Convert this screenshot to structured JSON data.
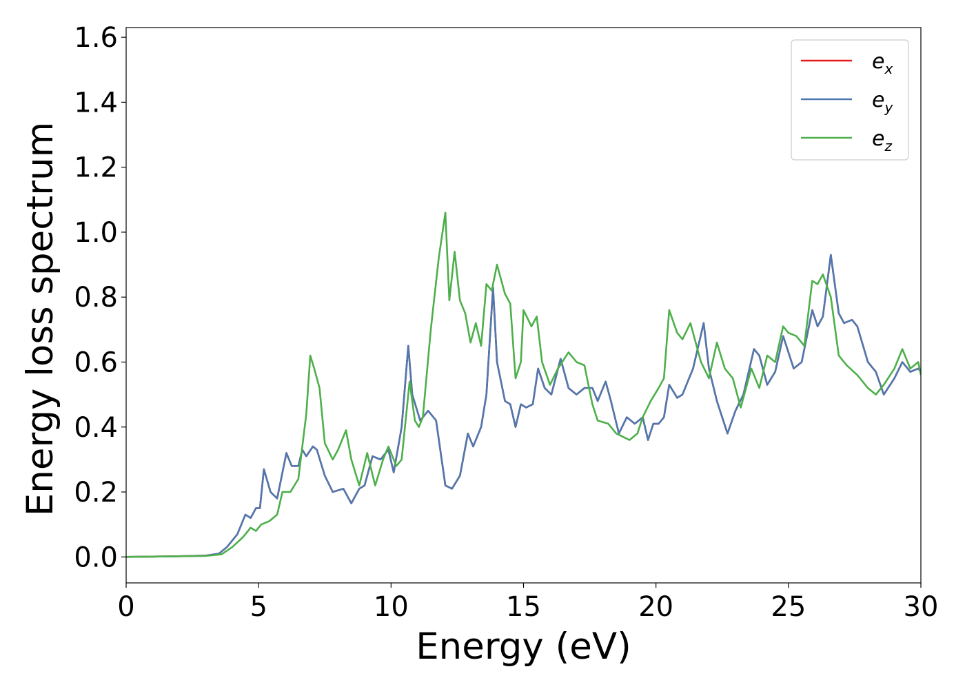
{
  "chart_data": {
    "type": "line",
    "title": "",
    "xlabel": "Energy (eV)",
    "ylabel": "Energy loss spectrum",
    "xlim": [
      0,
      30
    ],
    "ylim": [
      -0.08,
      1.63
    ],
    "xticks": [
      "0",
      "5",
      "10",
      "15",
      "20",
      "25",
      "30"
    ],
    "xtick_values": [
      0,
      5,
      10,
      15,
      20,
      25,
      30
    ],
    "yticks": [
      "0.0",
      "0.2",
      "0.4",
      "0.6",
      "0.8",
      "1.0",
      "1.2",
      "1.4",
      "1.6"
    ],
    "ytick_values": [
      0,
      0.2,
      0.4,
      0.6,
      0.8,
      1.0,
      1.2,
      1.4,
      1.6
    ],
    "grid": false,
    "legend_position": "top-right",
    "series": [
      {
        "name": "e_x",
        "legend_base": "e",
        "legend_sub": "x",
        "color": "#e41a1c",
        "x": [
          0,
          1,
          2,
          3,
          3.5,
          3.8,
          4.2,
          4.5,
          4.7,
          4.9,
          5.05,
          5.2,
          5.45,
          5.7,
          6.05,
          6.25,
          6.5,
          6.65,
          6.8,
          7.05,
          7.2,
          7.5,
          7.8,
          8.2,
          8.5,
          8.8,
          9.0,
          9.3,
          9.6,
          9.9,
          10.1,
          10.4,
          10.65,
          10.8,
          11.1,
          11.4,
          11.7,
          12.05,
          12.3,
          12.6,
          12.9,
          13.1,
          13.4,
          13.6,
          13.85,
          14.0,
          14.3,
          14.5,
          14.7,
          14.9,
          15.1,
          15.35,
          15.55,
          15.8,
          16.05,
          16.4,
          16.7,
          17.0,
          17.3,
          17.6,
          17.8,
          18.1,
          18.3,
          18.6,
          18.9,
          19.2,
          19.5,
          19.7,
          19.9,
          20.1,
          20.3,
          20.5,
          20.8,
          21.0,
          21.4,
          21.8,
          22.0,
          22.3,
          22.7,
          23.0,
          23.3,
          23.7,
          23.9,
          24.2,
          24.5,
          24.8,
          25.0,
          25.2,
          25.5,
          25.9,
          26.1,
          26.3,
          26.6,
          26.9,
          27.1,
          27.4,
          27.6,
          28.0,
          28.3,
          28.6,
          29.0,
          29.3,
          29.6,
          29.9,
          30.0
        ],
        "y": [
          0.0,
          0.001,
          0.002,
          0.004,
          0.01,
          0.03,
          0.07,
          0.13,
          0.12,
          0.15,
          0.15,
          0.27,
          0.2,
          0.18,
          0.32,
          0.28,
          0.28,
          0.33,
          0.31,
          0.34,
          0.33,
          0.25,
          0.2,
          0.21,
          0.165,
          0.21,
          0.22,
          0.31,
          0.3,
          0.33,
          0.26,
          0.4,
          0.65,
          0.5,
          0.42,
          0.45,
          0.42,
          0.22,
          0.21,
          0.25,
          0.38,
          0.34,
          0.4,
          0.5,
          0.83,
          0.6,
          0.48,
          0.47,
          0.4,
          0.47,
          0.46,
          0.47,
          0.58,
          0.52,
          0.5,
          0.61,
          0.52,
          0.5,
          0.52,
          0.52,
          0.48,
          0.54,
          0.48,
          0.38,
          0.43,
          0.41,
          0.43,
          0.36,
          0.41,
          0.41,
          0.43,
          0.53,
          0.49,
          0.5,
          0.58,
          0.72,
          0.58,
          0.48,
          0.38,
          0.45,
          0.5,
          0.64,
          0.62,
          0.53,
          0.57,
          0.68,
          0.63,
          0.58,
          0.6,
          0.76,
          0.71,
          0.74,
          0.93,
          0.75,
          0.72,
          0.73,
          0.71,
          0.6,
          0.57,
          0.5,
          0.55,
          0.6,
          0.57,
          0.58,
          0.57
        ]
      },
      {
        "name": "e_y",
        "legend_base": "e",
        "legend_sub": "y",
        "color": "#4e79b0",
        "x": [
          0,
          1,
          2,
          3,
          3.5,
          3.8,
          4.2,
          4.5,
          4.7,
          4.9,
          5.05,
          5.2,
          5.45,
          5.7,
          6.05,
          6.25,
          6.5,
          6.65,
          6.8,
          7.05,
          7.2,
          7.5,
          7.8,
          8.2,
          8.5,
          8.8,
          9.0,
          9.3,
          9.6,
          9.9,
          10.1,
          10.4,
          10.65,
          10.8,
          11.1,
          11.4,
          11.7,
          12.05,
          12.3,
          12.6,
          12.9,
          13.1,
          13.4,
          13.6,
          13.85,
          14.0,
          14.3,
          14.5,
          14.7,
          14.9,
          15.1,
          15.35,
          15.55,
          15.8,
          16.05,
          16.4,
          16.7,
          17.0,
          17.3,
          17.6,
          17.8,
          18.1,
          18.3,
          18.6,
          18.9,
          19.2,
          19.5,
          19.7,
          19.9,
          20.1,
          20.3,
          20.5,
          20.8,
          21.0,
          21.4,
          21.8,
          22.0,
          22.3,
          22.7,
          23.0,
          23.3,
          23.7,
          23.9,
          24.2,
          24.5,
          24.8,
          25.0,
          25.2,
          25.5,
          25.9,
          26.1,
          26.3,
          26.6,
          26.9,
          27.1,
          27.4,
          27.6,
          28.0,
          28.3,
          28.6,
          29.0,
          29.3,
          29.6,
          29.9,
          30.0
        ],
        "y": [
          0.0,
          0.001,
          0.002,
          0.004,
          0.01,
          0.03,
          0.07,
          0.13,
          0.12,
          0.15,
          0.15,
          0.27,
          0.2,
          0.18,
          0.32,
          0.28,
          0.28,
          0.33,
          0.31,
          0.34,
          0.33,
          0.25,
          0.2,
          0.21,
          0.165,
          0.21,
          0.22,
          0.31,
          0.3,
          0.33,
          0.26,
          0.4,
          0.65,
          0.5,
          0.42,
          0.45,
          0.42,
          0.22,
          0.21,
          0.25,
          0.38,
          0.34,
          0.4,
          0.5,
          0.83,
          0.6,
          0.48,
          0.47,
          0.4,
          0.47,
          0.46,
          0.47,
          0.58,
          0.52,
          0.5,
          0.61,
          0.52,
          0.5,
          0.52,
          0.52,
          0.48,
          0.54,
          0.48,
          0.38,
          0.43,
          0.41,
          0.43,
          0.36,
          0.41,
          0.41,
          0.43,
          0.53,
          0.49,
          0.5,
          0.58,
          0.72,
          0.58,
          0.48,
          0.38,
          0.45,
          0.5,
          0.64,
          0.62,
          0.53,
          0.57,
          0.68,
          0.63,
          0.58,
          0.6,
          0.76,
          0.71,
          0.74,
          0.93,
          0.75,
          0.72,
          0.73,
          0.71,
          0.6,
          0.57,
          0.5,
          0.55,
          0.6,
          0.57,
          0.58,
          0.57
        ]
      },
      {
        "name": "e_z",
        "legend_base": "e",
        "legend_sub": "z",
        "color": "#4daf4a",
        "x": [
          0,
          1,
          2,
          3,
          3.6,
          4.0,
          4.4,
          4.7,
          4.9,
          5.1,
          5.4,
          5.7,
          5.9,
          6.2,
          6.5,
          6.8,
          6.95,
          7.1,
          7.3,
          7.5,
          7.8,
          8.0,
          8.3,
          8.5,
          8.8,
          9.1,
          9.4,
          9.7,
          9.9,
          10.2,
          10.4,
          10.7,
          10.9,
          11.05,
          11.2,
          11.5,
          11.8,
          12.05,
          12.2,
          12.4,
          12.6,
          12.8,
          13.0,
          13.2,
          13.4,
          13.6,
          13.8,
          14.0,
          14.3,
          14.5,
          14.7,
          14.9,
          15.0,
          15.3,
          15.5,
          15.7,
          16.0,
          16.3,
          16.7,
          17.0,
          17.3,
          17.6,
          17.8,
          18.2,
          18.5,
          19.0,
          19.3,
          19.5,
          19.8,
          20.1,
          20.3,
          20.5,
          20.8,
          21.0,
          21.3,
          21.7,
          22.0,
          22.3,
          22.6,
          22.9,
          23.2,
          23.6,
          23.9,
          24.2,
          24.5,
          24.8,
          25.0,
          25.3,
          25.6,
          25.9,
          26.1,
          26.3,
          26.6,
          26.9,
          27.2,
          27.6,
          28.0,
          28.3,
          28.6,
          29.0,
          29.3,
          29.6,
          29.9,
          30.0
        ],
        "y": [
          0.0,
          0.001,
          0.002,
          0.003,
          0.008,
          0.03,
          0.06,
          0.09,
          0.08,
          0.1,
          0.11,
          0.13,
          0.2,
          0.2,
          0.24,
          0.44,
          0.62,
          0.58,
          0.52,
          0.35,
          0.3,
          0.33,
          0.39,
          0.3,
          0.22,
          0.32,
          0.22,
          0.3,
          0.34,
          0.28,
          0.3,
          0.54,
          0.42,
          0.4,
          0.43,
          0.7,
          0.92,
          1.06,
          0.79,
          0.94,
          0.79,
          0.75,
          0.66,
          0.72,
          0.65,
          0.84,
          0.82,
          0.9,
          0.81,
          0.78,
          0.55,
          0.6,
          0.76,
          0.71,
          0.74,
          0.6,
          0.53,
          0.58,
          0.63,
          0.6,
          0.59,
          0.47,
          0.42,
          0.41,
          0.38,
          0.36,
          0.38,
          0.43,
          0.48,
          0.52,
          0.55,
          0.76,
          0.69,
          0.67,
          0.72,
          0.6,
          0.55,
          0.66,
          0.58,
          0.55,
          0.46,
          0.58,
          0.52,
          0.62,
          0.6,
          0.71,
          0.69,
          0.68,
          0.65,
          0.85,
          0.84,
          0.87,
          0.8,
          0.62,
          0.59,
          0.56,
          0.52,
          0.5,
          0.53,
          0.58,
          0.64,
          0.58,
          0.6,
          0.56
        ]
      }
    ]
  }
}
